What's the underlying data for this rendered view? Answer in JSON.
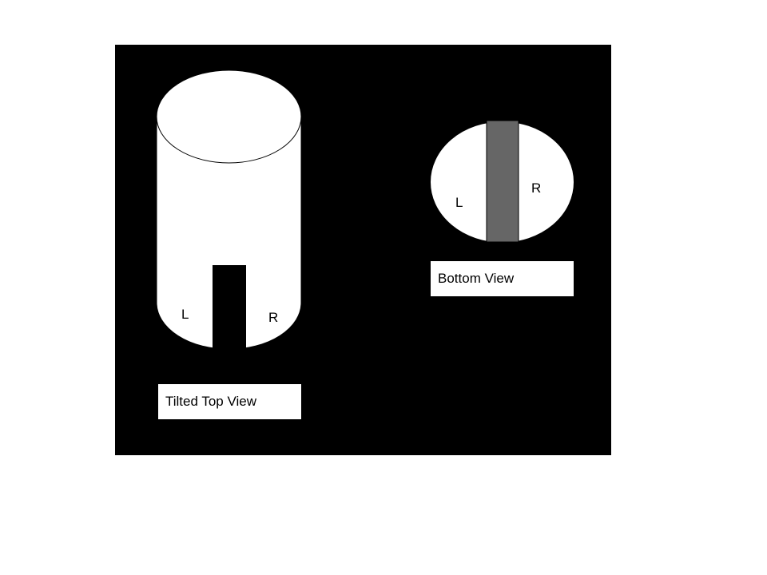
{
  "tilted_top_view": {
    "caption": "Tilted Top View",
    "left_label": "L",
    "right_label": "R"
  },
  "bottom_view": {
    "caption": "Bottom View",
    "left_label": "L",
    "right_label": "R"
  },
  "colors": {
    "background": "#000000",
    "shape_fill": "#ffffff",
    "slot": "#000000",
    "divider_bar": "#666666"
  }
}
